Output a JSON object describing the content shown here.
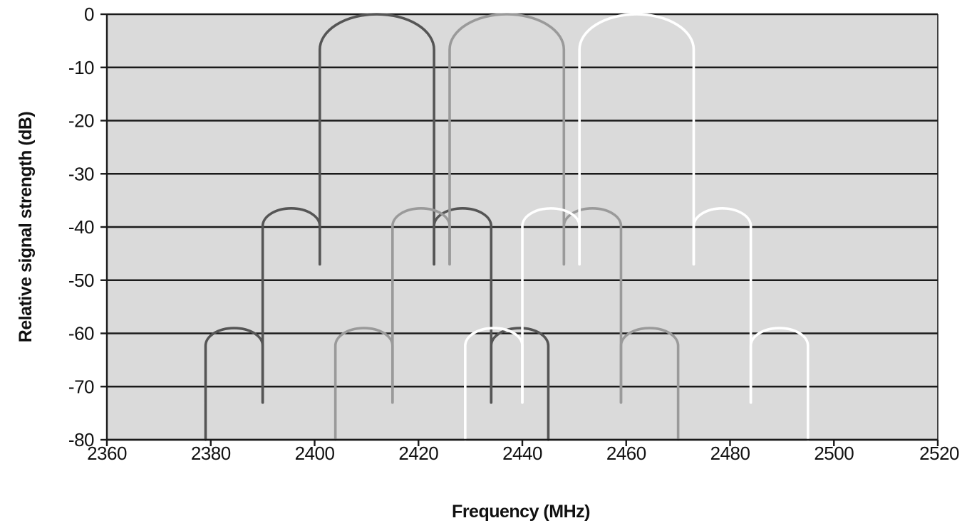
{
  "chart_data": {
    "type": "line",
    "title": "",
    "xlabel": "Frequency (MHz)",
    "ylabel": "Relative signal strength (dB)",
    "xlim": [
      2360,
      2520
    ],
    "ylim": [
      -80,
      0
    ],
    "x_ticks": [
      "2360",
      "2380",
      "2400",
      "2420",
      "2440",
      "2460",
      "2480",
      "2500",
      "2520"
    ],
    "y_ticks": [
      "0",
      "-10",
      "-20",
      "-30",
      "-40",
      "-50",
      "-60",
      "-70",
      "-80"
    ],
    "grid": "horizontal",
    "background_color": "#dadada",
    "series": [
      {
        "color": "#555555",
        "center_mhz": 2412,
        "lobes": [
          {
            "start": 2379,
            "end": 2390,
            "peak_db": -59,
            "base_db": -80,
            "close_db": -73
          },
          {
            "start": 2390,
            "end": 2401,
            "peak_db": -36.5,
            "base_db": -73,
            "close_db": -47
          },
          {
            "start": 2401,
            "end": 2423,
            "peak_db": 0,
            "base_db": -47,
            "close_db": -47
          },
          {
            "start": 2423,
            "end": 2434,
            "peak_db": -36.5,
            "base_db": -47,
            "close_db": -73
          },
          {
            "start": 2434,
            "end": 2445,
            "peak_db": -59,
            "base_db": -73,
            "close_db": -80
          }
        ]
      },
      {
        "color": "#9a9a9a",
        "center_mhz": 2437,
        "lobes": [
          {
            "start": 2404,
            "end": 2415,
            "peak_db": -59,
            "base_db": -80,
            "close_db": -73
          },
          {
            "start": 2415,
            "end": 2426,
            "peak_db": -36.5,
            "base_db": -73,
            "close_db": -47
          },
          {
            "start": 2426,
            "end": 2448,
            "peak_db": 0,
            "base_db": -47,
            "close_db": -47
          },
          {
            "start": 2448,
            "end": 2459,
            "peak_db": -36.5,
            "base_db": -47,
            "close_db": -73
          },
          {
            "start": 2459,
            "end": 2470,
            "peak_db": -59,
            "base_db": -73,
            "close_db": -80
          }
        ]
      },
      {
        "color": "#ffffff",
        "center_mhz": 2462,
        "lobes": [
          {
            "start": 2429,
            "end": 2440,
            "peak_db": -59,
            "base_db": -80,
            "close_db": -73
          },
          {
            "start": 2440,
            "end": 2451,
            "peak_db": -36.5,
            "base_db": -73,
            "close_db": -47
          },
          {
            "start": 2451,
            "end": 2473,
            "peak_db": 0,
            "base_db": -47,
            "close_db": -47
          },
          {
            "start": 2473,
            "end": 2484,
            "peak_db": -36.5,
            "base_db": -47,
            "close_db": -73
          },
          {
            "start": 2484,
            "end": 2495,
            "peak_db": -59,
            "base_db": -73,
            "close_db": -80
          }
        ]
      }
    ]
  }
}
